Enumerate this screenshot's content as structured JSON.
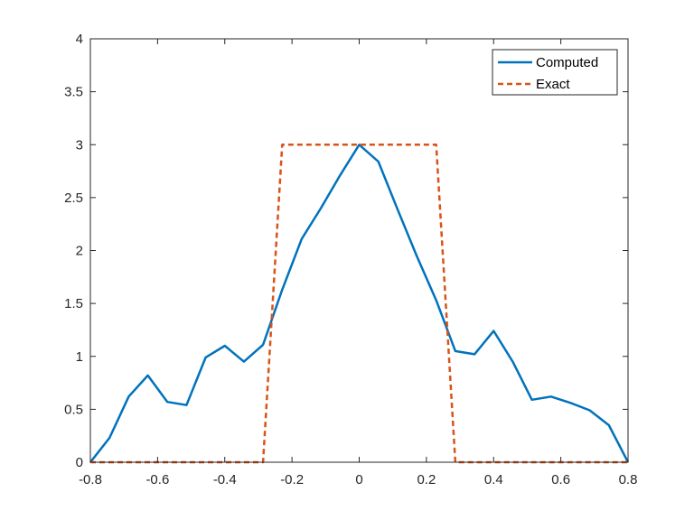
{
  "chart_data": {
    "type": "line",
    "title": "",
    "xlabel": "",
    "ylabel": "",
    "xlim": [
      -0.8,
      0.8
    ],
    "ylim": [
      0,
      4
    ],
    "x_ticks": [
      "-0.8",
      "-0.6",
      "-0.4",
      "-0.2",
      "0",
      "0.2",
      "0.4",
      "0.6",
      "0.8"
    ],
    "y_ticks": [
      "0",
      "0.5",
      "1",
      "1.5",
      "2",
      "2.5",
      "3",
      "3.5",
      "4"
    ],
    "grid": false,
    "legend_position": "top-right",
    "series": [
      {
        "name": "Computed",
        "color": "#0072BD",
        "style": "solid",
        "x": [
          -0.8,
          -0.743,
          -0.686,
          -0.629,
          -0.571,
          -0.514,
          -0.457,
          -0.4,
          -0.343,
          -0.286,
          -0.229,
          -0.171,
          -0.114,
          -0.057,
          0,
          0.057,
          0.114,
          0.171,
          0.229,
          0.286,
          0.343,
          0.4,
          0.457,
          0.514,
          0.571,
          0.629,
          0.686,
          0.743,
          0.8
        ],
        "y": [
          0,
          0.23,
          0.62,
          0.82,
          0.57,
          0.54,
          0.99,
          1.1,
          0.95,
          1.11,
          1.63,
          2.11,
          2.4,
          2.71,
          3.0,
          2.84,
          2.39,
          1.95,
          1.53,
          1.05,
          1.02,
          1.24,
          0.95,
          0.59,
          0.62,
          0.56,
          0.49,
          0.35,
          0
        ]
      },
      {
        "name": "Exact",
        "color": "#D95319",
        "style": "dashed",
        "x": [
          -0.8,
          -0.286,
          -0.229,
          0.229,
          0.286,
          0.8
        ],
        "y": [
          0,
          0,
          3,
          3,
          0,
          0
        ]
      }
    ]
  }
}
